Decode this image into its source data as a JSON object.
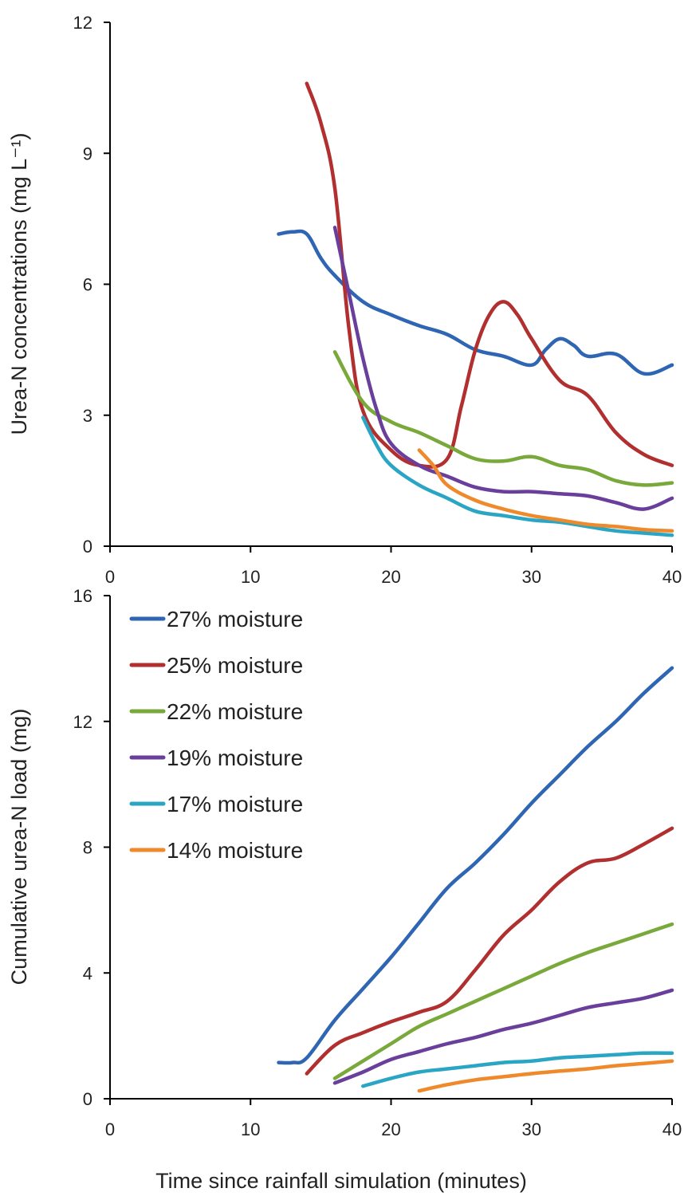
{
  "chart_data": [
    {
      "type": "line",
      "title": "",
      "xlabel": "",
      "ylabel": "Urea-N concentrations  (mg L⁻¹)",
      "xlim": [
        0,
        40
      ],
      "ylim": [
        0,
        12
      ],
      "x_ticks": [
        0,
        10,
        20,
        30,
        40
      ],
      "y_ticks": [
        0,
        3,
        6,
        9,
        12
      ],
      "grid": false,
      "series": [
        {
          "color": "#2f66b3",
          "points": [
            [
              12,
              7.15
            ],
            [
              13,
              7.2
            ],
            [
              14,
              7.15
            ],
            [
              15,
              6.6
            ],
            [
              16,
              6.2
            ],
            [
              18,
              5.6
            ],
            [
              20,
              5.3
            ],
            [
              22,
              5.05
            ],
            [
              24,
              4.85
            ],
            [
              26,
              4.5
            ],
            [
              28,
              4.35
            ],
            [
              30,
              4.15
            ],
            [
              31,
              4.5
            ],
            [
              32,
              4.75
            ],
            [
              33,
              4.6
            ],
            [
              34,
              4.35
            ],
            [
              36,
              4.4
            ],
            [
              38,
              3.95
            ],
            [
              40,
              4.15
            ]
          ]
        },
        {
          "color": "#b22f2f",
          "points": [
            [
              14,
              10.6
            ],
            [
              15,
              9.7
            ],
            [
              16,
              8.2
            ],
            [
              17,
              5.0
            ],
            [
              18,
              3.1
            ],
            [
              20,
              2.2
            ],
            [
              22,
              1.85
            ],
            [
              24,
              2.0
            ],
            [
              25,
              3.2
            ],
            [
              26,
              4.5
            ],
            [
              27,
              5.3
            ],
            [
              28,
              5.6
            ],
            [
              29,
              5.3
            ],
            [
              30,
              4.75
            ],
            [
              32,
              3.8
            ],
            [
              34,
              3.45
            ],
            [
              36,
              2.6
            ],
            [
              38,
              2.1
            ],
            [
              40,
              1.85
            ]
          ]
        },
        {
          "color": "#78a93a",
          "points": [
            [
              16,
              4.45
            ],
            [
              18,
              3.3
            ],
            [
              20,
              2.85
            ],
            [
              22,
              2.6
            ],
            [
              24,
              2.3
            ],
            [
              26,
              2.0
            ],
            [
              28,
              1.95
            ],
            [
              30,
              2.05
            ],
            [
              32,
              1.85
            ],
            [
              34,
              1.75
            ],
            [
              36,
              1.5
            ],
            [
              38,
              1.4
            ],
            [
              40,
              1.45
            ]
          ]
        },
        {
          "color": "#6a3f9c",
          "points": [
            [
              16,
              7.3
            ],
            [
              17,
              5.8
            ],
            [
              18,
              4.3
            ],
            [
              19,
              3.1
            ],
            [
              20,
              2.35
            ],
            [
              22,
              1.85
            ],
            [
              24,
              1.6
            ],
            [
              26,
              1.35
            ],
            [
              28,
              1.25
            ],
            [
              30,
              1.25
            ],
            [
              32,
              1.2
            ],
            [
              34,
              1.15
            ],
            [
              36,
              1.0
            ],
            [
              38,
              0.85
            ],
            [
              40,
              1.1
            ]
          ]
        },
        {
          "color": "#2aa6c4",
          "points": [
            [
              18,
              2.95
            ],
            [
              19,
              2.3
            ],
            [
              20,
              1.85
            ],
            [
              22,
              1.4
            ],
            [
              24,
              1.1
            ],
            [
              26,
              0.8
            ],
            [
              28,
              0.7
            ],
            [
              30,
              0.6
            ],
            [
              32,
              0.55
            ],
            [
              34,
              0.45
            ],
            [
              36,
              0.35
            ],
            [
              38,
              0.3
            ],
            [
              40,
              0.25
            ]
          ]
        },
        {
          "color": "#ef8a2c",
          "points": [
            [
              22,
              2.2
            ],
            [
              23,
              1.85
            ],
            [
              24,
              1.4
            ],
            [
              26,
              1.05
            ],
            [
              28,
              0.85
            ],
            [
              30,
              0.7
            ],
            [
              32,
              0.6
            ],
            [
              34,
              0.5
            ],
            [
              36,
              0.45
            ],
            [
              38,
              0.38
            ],
            [
              40,
              0.35
            ]
          ]
        }
      ]
    },
    {
      "type": "line",
      "title": "",
      "xlabel": "Time since rainfall simulation (minutes)",
      "ylabel": "Cumulative urea-N load (mg)",
      "xlim": [
        0,
        40
      ],
      "ylim": [
        0,
        16
      ],
      "x_ticks": [
        0,
        10,
        20,
        30,
        40
      ],
      "y_ticks": [
        0,
        4,
        8,
        12,
        16
      ],
      "grid": false,
      "legend": {
        "placement": "top-left"
      },
      "series": [
        {
          "name": "27% moisture",
          "color": "#2f66b3",
          "points": [
            [
              12,
              1.15
            ],
            [
              13,
              1.15
            ],
            [
              14,
              1.3
            ],
            [
              16,
              2.5
            ],
            [
              18,
              3.5
            ],
            [
              20,
              4.5
            ],
            [
              22,
              5.6
            ],
            [
              24,
              6.7
            ],
            [
              26,
              7.5
            ],
            [
              28,
              8.4
            ],
            [
              30,
              9.4
            ],
            [
              32,
              10.3
            ],
            [
              34,
              11.2
            ],
            [
              36,
              12.0
            ],
            [
              38,
              12.9
            ],
            [
              40,
              13.7
            ]
          ]
        },
        {
          "name": "25% moisture",
          "color": "#b22f2f",
          "points": [
            [
              14,
              0.8
            ],
            [
              16,
              1.7
            ],
            [
              18,
              2.1
            ],
            [
              20,
              2.45
            ],
            [
              22,
              2.75
            ],
            [
              24,
              3.1
            ],
            [
              26,
              4.1
            ],
            [
              28,
              5.2
            ],
            [
              30,
              6.0
            ],
            [
              32,
              6.9
            ],
            [
              34,
              7.5
            ],
            [
              36,
              7.65
            ],
            [
              38,
              8.1
            ],
            [
              40,
              8.6
            ]
          ]
        },
        {
          "name": "22% moisture",
          "color": "#78a93a",
          "points": [
            [
              16,
              0.65
            ],
            [
              18,
              1.2
            ],
            [
              20,
              1.75
            ],
            [
              22,
              2.3
            ],
            [
              24,
              2.7
            ],
            [
              26,
              3.1
            ],
            [
              28,
              3.5
            ],
            [
              30,
              3.9
            ],
            [
              32,
              4.3
            ],
            [
              34,
              4.65
            ],
            [
              36,
              4.95
            ],
            [
              38,
              5.25
            ],
            [
              40,
              5.55
            ]
          ]
        },
        {
          "name": "19% moisture",
          "color": "#6a3f9c",
          "points": [
            [
              16,
              0.5
            ],
            [
              18,
              0.85
            ],
            [
              20,
              1.25
            ],
            [
              22,
              1.5
            ],
            [
              24,
              1.75
            ],
            [
              26,
              1.95
            ],
            [
              28,
              2.2
            ],
            [
              30,
              2.4
            ],
            [
              32,
              2.65
            ],
            [
              34,
              2.9
            ],
            [
              36,
              3.05
            ],
            [
              38,
              3.2
            ],
            [
              40,
              3.45
            ]
          ]
        },
        {
          "name": "17% moisture",
          "color": "#2aa6c4",
          "points": [
            [
              18,
              0.4
            ],
            [
              20,
              0.65
            ],
            [
              22,
              0.85
            ],
            [
              24,
              0.95
            ],
            [
              26,
              1.05
            ],
            [
              28,
              1.15
            ],
            [
              30,
              1.2
            ],
            [
              32,
              1.3
            ],
            [
              34,
              1.35
            ],
            [
              36,
              1.4
            ],
            [
              38,
              1.45
            ],
            [
              40,
              1.45
            ]
          ]
        },
        {
          "name": "14% moisture",
          "color": "#ef8a2c",
          "points": [
            [
              22,
              0.25
            ],
            [
              24,
              0.45
            ],
            [
              26,
              0.6
            ],
            [
              28,
              0.7
            ],
            [
              30,
              0.8
            ],
            [
              32,
              0.88
            ],
            [
              34,
              0.95
            ],
            [
              36,
              1.05
            ],
            [
              38,
              1.12
            ],
            [
              40,
              1.2
            ]
          ]
        }
      ]
    }
  ]
}
